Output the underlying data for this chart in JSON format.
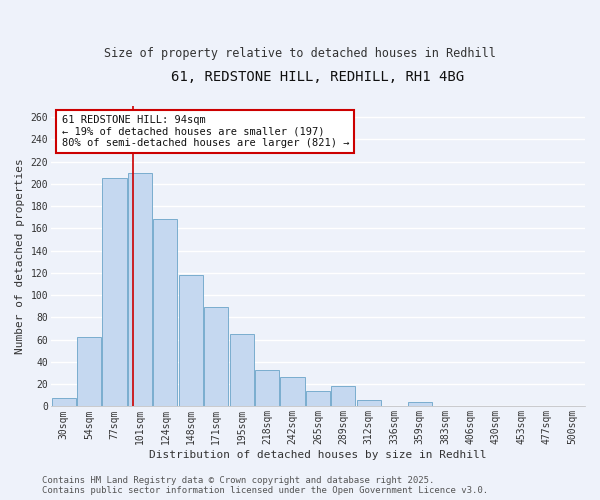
{
  "title": "61, REDSTONE HILL, REDHILL, RH1 4BG",
  "subtitle": "Size of property relative to detached houses in Redhill",
  "xlabel": "Distribution of detached houses by size in Redhill",
  "ylabel": "Number of detached properties",
  "bar_labels": [
    "30sqm",
    "54sqm",
    "77sqm",
    "101sqm",
    "124sqm",
    "148sqm",
    "171sqm",
    "195sqm",
    "218sqm",
    "242sqm",
    "265sqm",
    "289sqm",
    "312sqm",
    "336sqm",
    "359sqm",
    "383sqm",
    "406sqm",
    "430sqm",
    "453sqm",
    "477sqm",
    "500sqm"
  ],
  "bar_values": [
    8,
    62,
    205,
    210,
    168,
    118,
    89,
    65,
    33,
    26,
    14,
    18,
    6,
    0,
    4,
    0,
    0,
    0,
    0,
    0,
    0
  ],
  "bar_color": "#c5d8f0",
  "bar_edge_color": "#7aadce",
  "ylim": [
    0,
    270
  ],
  "yticks": [
    0,
    20,
    40,
    60,
    80,
    100,
    120,
    140,
    160,
    180,
    200,
    220,
    240,
    260
  ],
  "vline_x_idx": 2.72,
  "vline_color": "#cc0000",
  "annotation_title": "61 REDSTONE HILL: 94sqm",
  "annotation_line1": "← 19% of detached houses are smaller (197)",
  "annotation_line2": "80% of semi-detached houses are larger (821) →",
  "footer_line1": "Contains HM Land Registry data © Crown copyright and database right 2025.",
  "footer_line2": "Contains public sector information licensed under the Open Government Licence v3.0.",
  "background_color": "#eef2fa",
  "grid_color": "#ffffff",
  "title_fontsize": 10,
  "subtitle_fontsize": 8.5,
  "axis_label_fontsize": 8,
  "tick_fontsize": 7,
  "footer_fontsize": 6.5,
  "annotation_fontsize": 7.5
}
